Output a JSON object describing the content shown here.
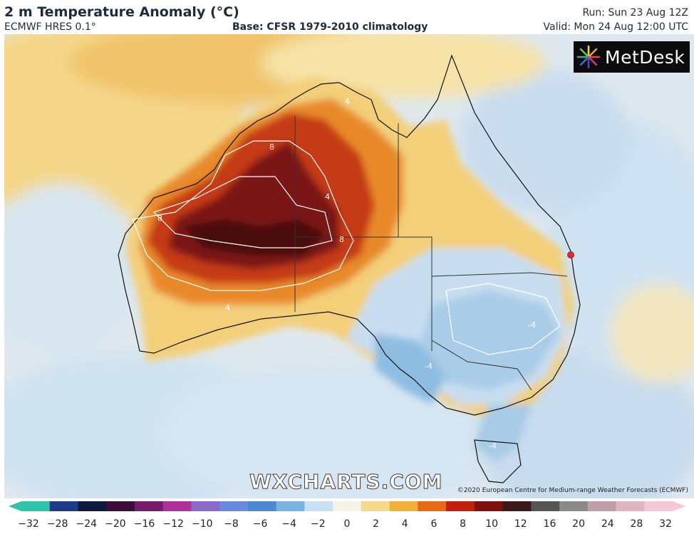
{
  "header": {
    "title": "2 m Temperature Anomaly (°C)",
    "model": "ECMWF HRES 0.1°",
    "base": "Base: CFSR 1979-2010 climatology",
    "run": "Run: Sun 23 Aug 12Z",
    "valid": "Valid: Mon 24 Aug 12:00 UTC"
  },
  "logo": {
    "text": "MetDesk",
    "icon": "burst-logo-icon"
  },
  "watermark": "WXCHARTS.COM",
  "copyright": "©2020 European Centre for Medium-range Weather Forecasts (ECMWF)",
  "colorbar": {
    "ticks": [
      "−32",
      "−28",
      "−24",
      "−20",
      "−16",
      "−12",
      "−10",
      "−8",
      "−6",
      "−4",
      "−2",
      "0",
      "2",
      "4",
      "6",
      "8",
      "10",
      "12",
      "16",
      "20",
      "24",
      "28",
      "32"
    ],
    "colors": [
      "#2ec4a8",
      "#1d3a8a",
      "#101a40",
      "#3c0f3a",
      "#7a1a6a",
      "#b0309a",
      "#8a6ac8",
      "#6a8ae0",
      "#4a8ad0",
      "#7ab2e2",
      "#c8e0f2",
      "#f7f3e6",
      "#f6da8a",
      "#f0b03a",
      "#e56a18",
      "#c0200e",
      "#801010",
      "#3a1a1a",
      "#555555",
      "#8a8a8a",
      "#c0a0a8",
      "#e0b4c0",
      "#f4c8d4"
    ]
  },
  "map": {
    "contour_labels": [
      "4",
      "8",
      "-4"
    ],
    "marker_color": "#ff2020"
  }
}
